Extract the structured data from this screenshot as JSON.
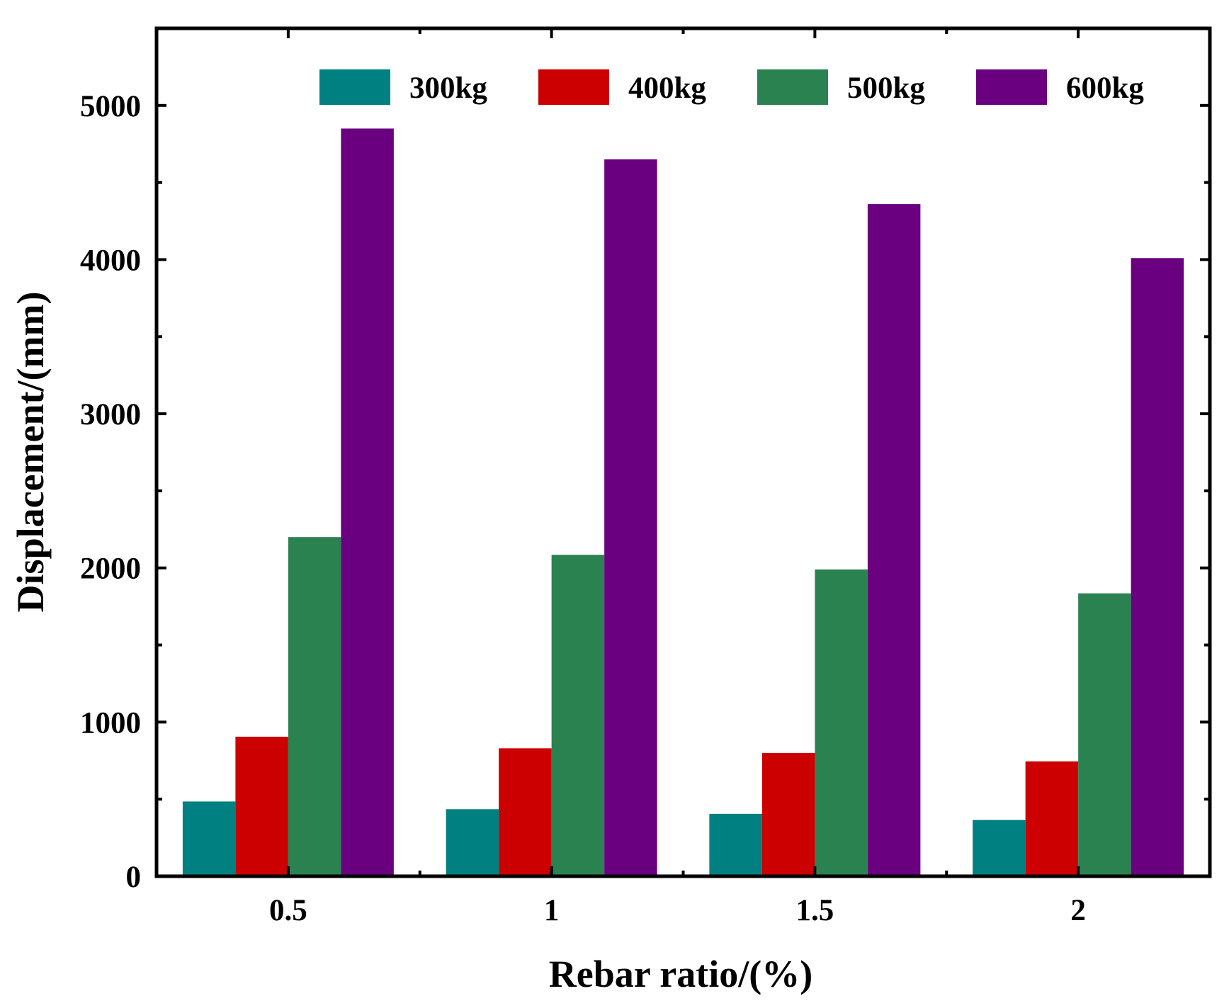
{
  "chart_data": {
    "type": "bar",
    "title": "",
    "xlabel": "Rebar ratio/(%)",
    "ylabel": "Displacement/(mm)",
    "categories": [
      "0.5",
      "1",
      "1.5",
      "2"
    ],
    "ylim": [
      0,
      5500
    ],
    "yticks": [
      0,
      1000,
      2000,
      3000,
      4000,
      5000
    ],
    "yticks_labels": [
      "0",
      "1000",
      "2000",
      "3000",
      "4000",
      "5000"
    ],
    "legend_position": "top",
    "grid": false,
    "series": [
      {
        "name": "300kg",
        "color": "#008080",
        "values": [
          485,
          435,
          405,
          365
        ]
      },
      {
        "name": "400kg",
        "color": "#cc0000",
        "values": [
          905,
          830,
          800,
          745
        ]
      },
      {
        "name": "500kg",
        "color": "#2a8250",
        "values": [
          2200,
          2085,
          1990,
          1835
        ]
      },
      {
        "name": "600kg",
        "color": "#6a0080",
        "values": [
          4850,
          4650,
          4360,
          4010
        ]
      }
    ]
  }
}
